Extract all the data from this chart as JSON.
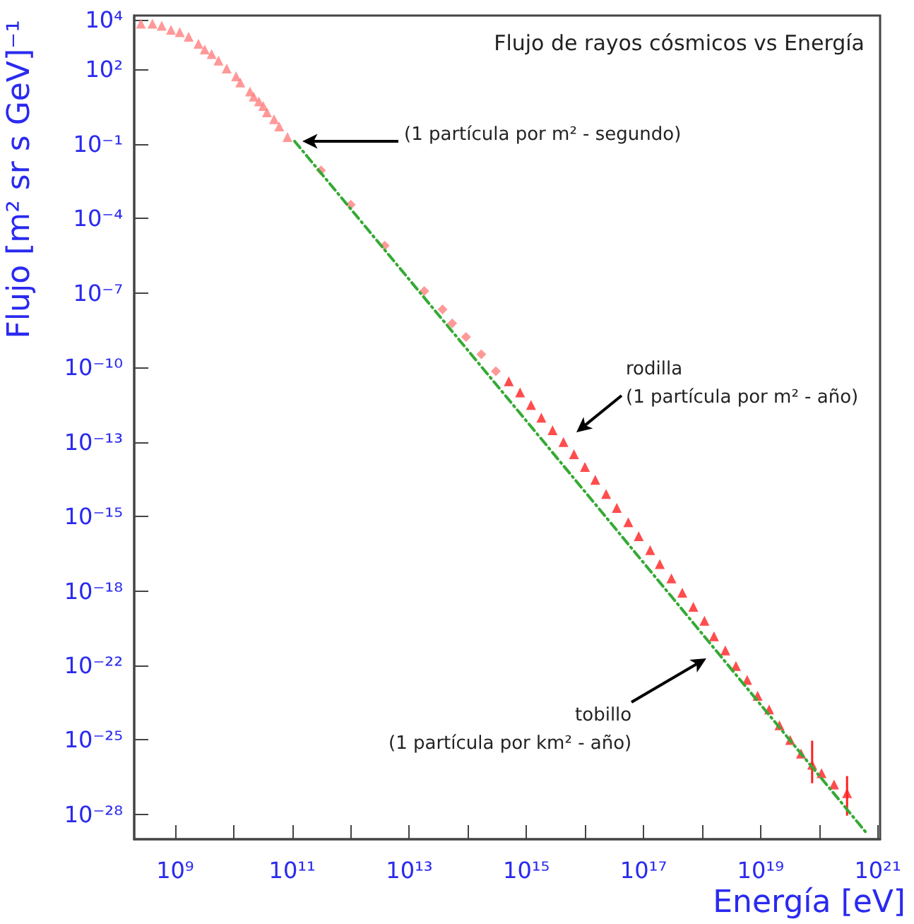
{
  "chart_data": {
    "type": "scatter",
    "title": "Flujo de rayos cósmicos vs Energía",
    "xlabel": "Energía [eV]",
    "ylabel": "Flujo [m² sr s GeV]⁻¹",
    "log": "xy",
    "xlim": [
      200000000.0,
      1.1e+21
    ],
    "ylim": [
      1e-29,
      15000.0
    ],
    "xticks": [
      {
        "value": 1000000000.0,
        "label": "10⁹"
      },
      {
        "value": 10000000000.0,
        "label": null
      },
      {
        "value": 100000000000.0,
        "label": "10¹¹"
      },
      {
        "value": 1000000000000.0,
        "label": null
      },
      {
        "value": 10000000000000.0,
        "label": "10¹³"
      },
      {
        "value": 100000000000000.0,
        "label": null
      },
      {
        "value": 1000000000000000.0,
        "label": "10¹⁵"
      },
      {
        "value": 1e+16,
        "label": null
      },
      {
        "value": 1e+17,
        "label": "10¹⁷"
      },
      {
        "value": 1e+18,
        "label": null
      },
      {
        "value": 1e+19,
        "label": "10¹⁹"
      },
      {
        "value": 1e+20,
        "label": null
      },
      {
        "value": 1e+21,
        "label": "10²¹"
      }
    ],
    "yticks": [
      {
        "value": 10000.0,
        "label": "10⁴"
      },
      {
        "value": 100.0,
        "label": "10²"
      },
      {
        "value": 0.1,
        "label": "10⁻¹"
      },
      {
        "value": 0.0001,
        "label": "10⁻⁴"
      },
      {
        "value": 1e-07,
        "label": "10⁻⁷"
      },
      {
        "value": 1e-10,
        "label": "10⁻¹⁰"
      },
      {
        "value": 1e-13,
        "label": "10⁻¹³"
      },
      {
        "value": 1e-16,
        "label": "10⁻¹⁵"
      },
      {
        "value": 1e-19,
        "label": "10⁻¹⁸"
      },
      {
        "value": 1e-22,
        "label": "10⁻²²"
      },
      {
        "value": 1e-25,
        "label": "10⁻²⁵"
      },
      {
        "value": 1e-28,
        "label": "10⁻²⁸"
      }
    ],
    "grid": false,
    "series": [
      {
        "color": "#ff8080",
        "marker": "triangle",
        "x": [
          260000000.0,
          410000000.0,
          590000000.0,
          850000000.0,
          1200000000.0,
          1700000000.0,
          2500000000.0,
          3200000000.0,
          4200000000.0,
          5500000000.0,
          7600000000.0,
          11000000000.0,
          13000000000.0,
          19000000000.0,
          22000000000.0,
          27000000000.0,
          32000000000.0,
          37000000000.0,
          49000000000.0,
          60000000000.0,
          83000000000.0
        ],
        "values": [
          7100.0,
          7100.0,
          5800.0,
          4000.0,
          3200.0,
          2100.0,
          1100.0,
          650,
          420,
          230,
          110,
          54,
          30,
          13,
          8.1,
          5.2,
          3.4,
          1.9,
          1.0,
          0.51,
          0.19
        ]
      },
      {
        "color": "#ff8080",
        "marker": "diamond",
        "x": [
          310000000000.0,
          1000000000000.0,
          3800000000000.0,
          18000000000000.0,
          37000000000000.0,
          54000000000000.0,
          93000000000000.0,
          170000000000000.0,
          300000000000000.0
        ],
        "values": [
          0.0087,
          0.00036,
          8.1e-06,
          1.2e-07,
          2.2e-08,
          6e-09,
          1.7e-09,
          3.4e-10,
          7.1e-11
        ]
      },
      {
        "color": "#ff2020",
        "marker": "triangle",
        "x": [
          500000000000000.0,
          780000000000000.0,
          1200000000000000.0,
          1800000000000000.0,
          2800000000000000.0,
          4300000000000000.0,
          6500000000000000.0,
          1e+16,
          1.5e+16,
          2.3e+16,
          3.5e+16,
          5.5e+16,
          8.3e+16,
          1.3e+17,
          1.9e+17,
          3e+17,
          4.6e+17,
          7.1e+17,
          1.1e+18,
          1.6e+18,
          2.5e+18,
          3.8e+18,
          5.9e+18,
          8.9e+18,
          1.4e+19,
          2.1e+19,
          3.2e+19,
          4.9e+19,
          7.6e+19,
          1.1e+20,
          1.8e+20,
          3e+20
        ],
        "values": [
          2.8e-11,
          1e-11,
          3.1e-12,
          9.5e-13,
          3e-13,
          1e-13,
          3.2e-14,
          9.8e-15,
          3e-15,
          8.1e-16,
          2.2e-16,
          5.9e-17,
          1.6e-17,
          4.4e-18,
          1.2e-18,
          3.2e-19,
          8.5e-20,
          2.3e-20,
          6.3e-21,
          1.5e-21,
          4e-22,
          9.5e-23,
          2.6e-23,
          6e-24,
          1.7e-24,
          3.9e-25,
          1e-25,
          2.8e-26,
          1e-26,
          4.6e-27,
          1.6e-27,
          7.2e-28
        ],
        "errors": [
          null,
          null,
          null,
          null,
          null,
          null,
          null,
          null,
          null,
          null,
          null,
          null,
          null,
          null,
          null,
          null,
          null,
          null,
          null,
          null,
          null,
          null,
          null,
          null,
          null,
          null,
          null,
          null,
          [
            1.8e-27,
            9.3e-26
          ],
          null,
          null,
          [
            8.9e-29,
            3.5e-27
          ]
        ]
      },
      {
        "type": "line",
        "color": "#33aa33",
        "line_style": "dashed",
        "marker": "none",
        "x": [
          110000000000.0,
          1e+16,
          6.3e+20
        ],
        "values": [
          0.13,
          1e-15,
          1.9e-29
        ]
      }
    ],
    "annotations": [
      "(1 partícula por m² - segundo)",
      "rodilla\n(1 partícula por m² - año)",
      "tobillo\n(1 partícula por km² - año)"
    ]
  }
}
